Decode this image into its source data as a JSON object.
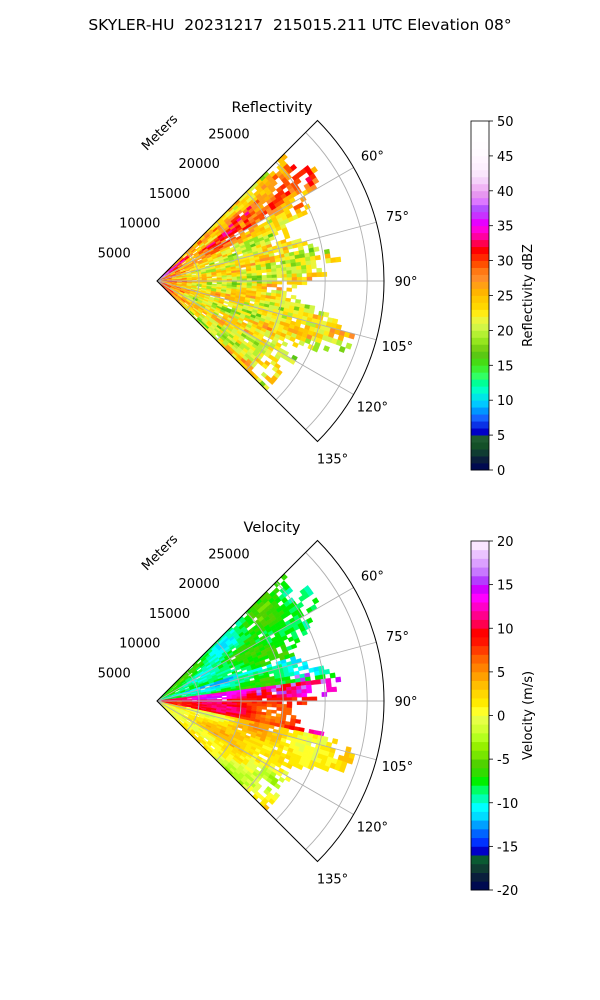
{
  "suptitle": "SKYLER-HU  20231217  215015.211 UTC Elevation 08°",
  "chart_data": [
    {
      "type": "heatmap",
      "subtype": "polar-sector (PPI radar scan)",
      "title": "Reflectivity",
      "radial_label": "Meters",
      "radial_ticks": [
        5000,
        10000,
        15000,
        20000,
        25000
      ],
      "radial_range": [
        0,
        27000
      ],
      "azimuth_range_deg": [
        45,
        135
      ],
      "azimuth_ticks": [
        "60°",
        "75°",
        "90°",
        "105°",
        "120°",
        "135°"
      ],
      "grid": true,
      "colorbar": {
        "label": "Reflectivity dBZ",
        "range": [
          0,
          50
        ],
        "ticks": [
          0,
          5,
          10,
          15,
          20,
          25,
          30,
          35,
          40,
          45,
          50
        ],
        "placement": "right"
      },
      "field_summary": "Echoes mostly 18–28 dBZ (green/yellow) across the sector out to ~22 km; a band of 30–38 dBZ (orange/red) along the northern edge near 50–65° azimuth; data edge ragged beyond ~18–22 km."
    },
    {
      "type": "heatmap",
      "subtype": "polar-sector (PPI radar scan)",
      "title": "Velocity",
      "radial_label": "Meters",
      "radial_ticks": [
        5000,
        10000,
        15000,
        20000,
        25000
      ],
      "radial_range": [
        0,
        27000
      ],
      "azimuth_range_deg": [
        45,
        135
      ],
      "azimuth_ticks": [
        "60°",
        "75°",
        "90°",
        "105°",
        "120°",
        "135°"
      ],
      "grid": true,
      "colorbar": {
        "label": "Velocity (m/s)",
        "range": [
          -20,
          20
        ],
        "ticks": [
          -20,
          -15,
          -10,
          -5,
          0,
          5,
          10,
          15,
          20
        ],
        "placement": "right"
      },
      "field_summary": "Inbound -5 to -12 m/s (green/cyan) north of ~80° azimuth, strong outbound +10 to +15 m/s (red/magenta) band near 85–105°, 0 to +5 m/s (yellow/orange) over the southern sector."
    }
  ]
}
